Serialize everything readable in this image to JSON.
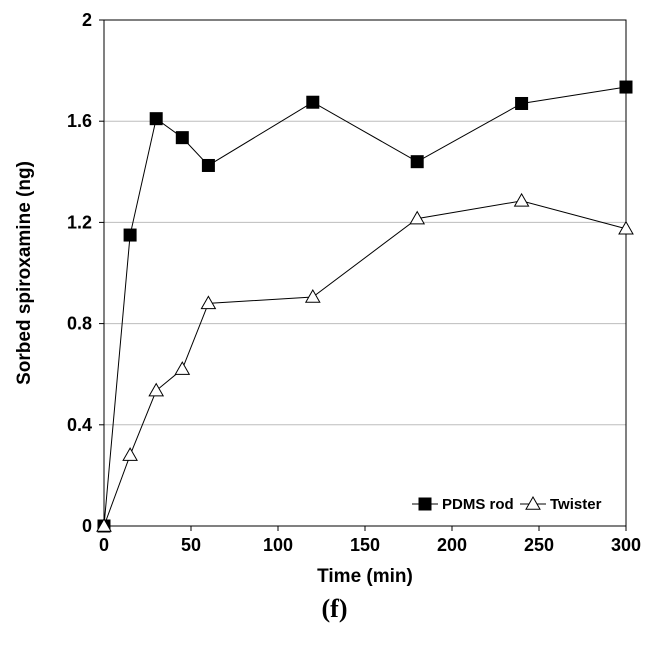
{
  "chart_data": {
    "type": "line",
    "title": "",
    "xlabel": "Time (min)",
    "ylabel": "Sorbed spiroxamine (ng)",
    "xlim": [
      0,
      300
    ],
    "ylim": [
      0,
      2
    ],
    "x_ticks": [
      "0",
      "50",
      "100",
      "150",
      "200",
      "250",
      "300"
    ],
    "y_ticks": [
      "0",
      "0.4",
      "0.8",
      "1.2",
      "1.6",
      "2"
    ],
    "grid": "horizontal",
    "legend": "bottom-right",
    "series": [
      {
        "name": "PDMS rod",
        "marker": "filled-square",
        "color": "#000000",
        "x": [
          0,
          15,
          30,
          45,
          60,
          120,
          180,
          240,
          300
        ],
        "y": [
          0,
          1.15,
          1.61,
          1.535,
          1.425,
          1.675,
          1.44,
          1.67,
          1.735
        ]
      },
      {
        "name": "Twister",
        "marker": "open-triangle",
        "color": "#000000",
        "x": [
          0,
          15,
          30,
          45,
          60,
          120,
          180,
          240,
          300
        ],
        "y": [
          0,
          0.28,
          0.535,
          0.62,
          0.88,
          0.905,
          1.215,
          1.285,
          1.175
        ]
      }
    ]
  },
  "panel_label": "(f)"
}
